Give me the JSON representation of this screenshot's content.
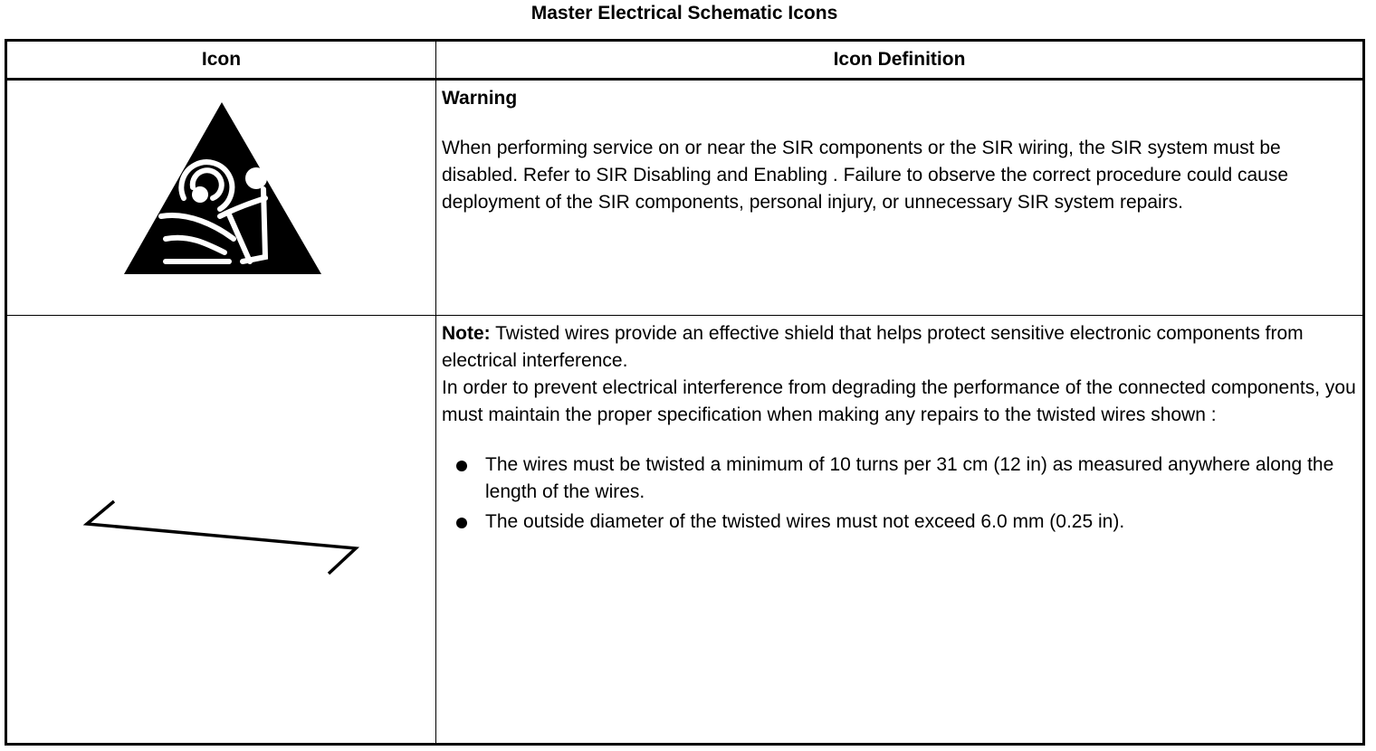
{
  "title": "Master Electrical Schematic Icons",
  "table": {
    "headers": [
      "Icon",
      "Icon Definition"
    ],
    "rows": [
      {
        "icon": "sir-airbag-warning-triangle-icon",
        "heading": "Warning",
        "paragraphs": [
          "When performing service on or near the SIR components or the SIR wiring, the SIR system must be disabled. Refer to SIR Disabling and Enabling . Failure to observe the correct procedure could cause deployment of the SIR components, personal injury, or unnecessary SIR system repairs."
        ]
      },
      {
        "icon": "twisted-wires-icon",
        "note_label": "Note:",
        "note_text": " Twisted wires provide an effective shield that helps protect sensitive electronic components from electrical interference.",
        "paragraph": "In order to prevent electrical interference from degrading the performance of the connected components, you must maintain the proper specification when making any repairs to the twisted wires shown :",
        "bullets": [
          "The wires must be twisted a minimum of 10 turns per 31 cm (12 in) as measured anywhere along the length of the wires.",
          "The outside diameter of the twisted wires must not exceed 6.0 mm (0.25 in)."
        ]
      }
    ]
  }
}
